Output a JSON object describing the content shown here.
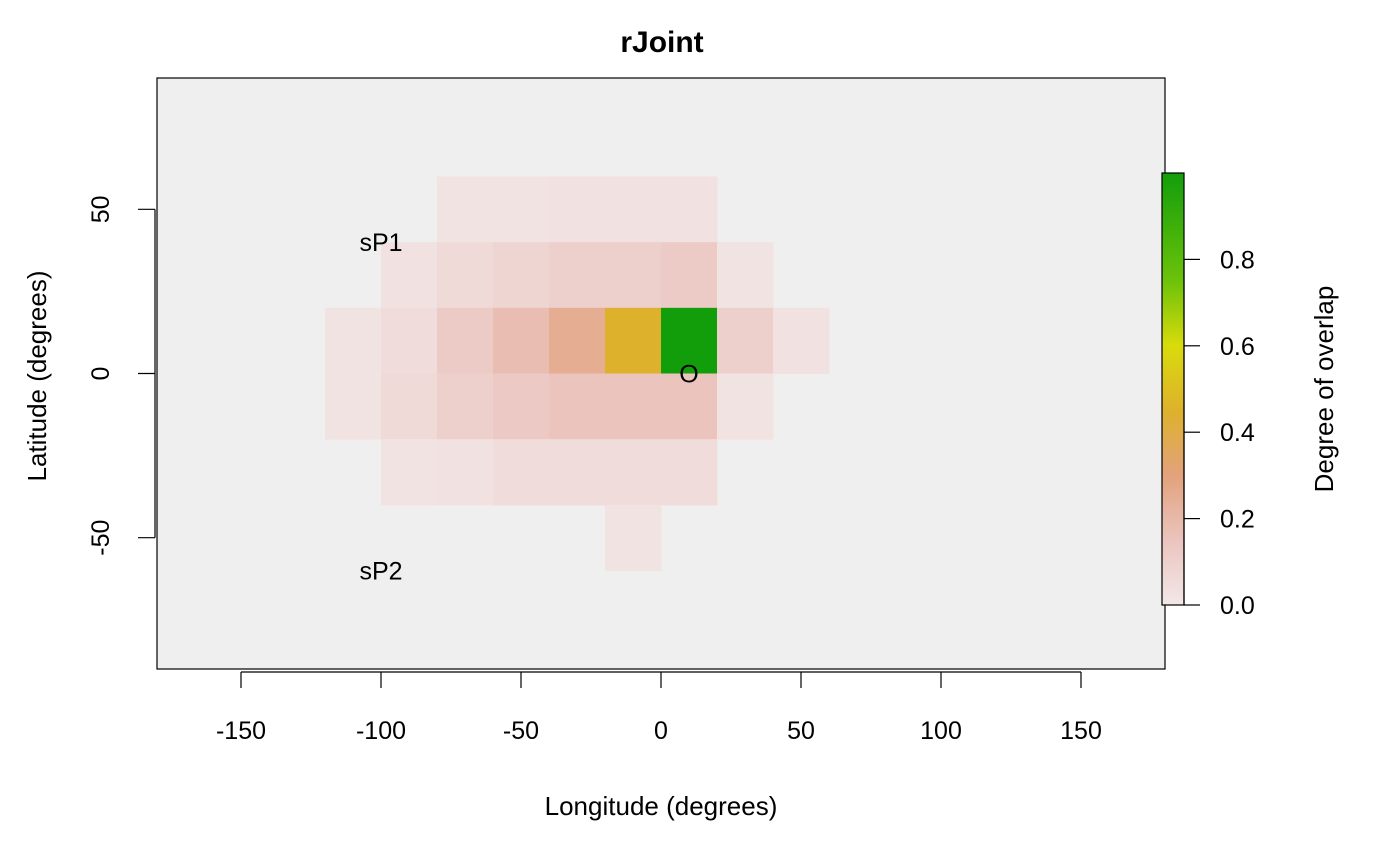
{
  "chart_data": {
    "type": "heatmap",
    "title": "rJoint",
    "xlabel": "Longitude (degrees)",
    "ylabel": "Latitude (degrees)",
    "xlim": [
      -180,
      180
    ],
    "ylim": [
      -90,
      90
    ],
    "x_ticks": [
      -150,
      -100,
      -50,
      0,
      50,
      100,
      150
    ],
    "y_ticks": [
      -50,
      0,
      50
    ],
    "x_tick_labels": [
      "-150",
      "-100",
      "-50",
      "0",
      "50",
      "100",
      "150"
    ],
    "y_tick_labels": [
      "-50",
      "0",
      "50"
    ],
    "grid": false,
    "background_color": "#EFEFEF",
    "cell_size_degrees": 20,
    "cell_height_degrees": 20,
    "cells": [
      {
        "x": -80,
        "y": 40,
        "value": 0.02
      },
      {
        "x": -60,
        "y": 40,
        "value": 0.02
      },
      {
        "x": -40,
        "y": 40,
        "value": 0.03
      },
      {
        "x": -20,
        "y": 40,
        "value": 0.03
      },
      {
        "x": 0,
        "y": 40,
        "value": 0.03
      },
      {
        "x": -100,
        "y": 20,
        "value": 0.03
      },
      {
        "x": -80,
        "y": 20,
        "value": 0.06
      },
      {
        "x": -60,
        "y": 20,
        "value": 0.08
      },
      {
        "x": -40,
        "y": 20,
        "value": 0.1
      },
      {
        "x": -20,
        "y": 20,
        "value": 0.1
      },
      {
        "x": 0,
        "y": 20,
        "value": 0.12
      },
      {
        "x": 20,
        "y": 20,
        "value": 0.02
      },
      {
        "x": -120,
        "y": 0,
        "value": 0.02
      },
      {
        "x": -100,
        "y": 0,
        "value": 0.05
      },
      {
        "x": -80,
        "y": 0,
        "value": 0.12
      },
      {
        "x": -60,
        "y": 0,
        "value": 0.18
      },
      {
        "x": -40,
        "y": 0,
        "value": 0.25
      },
      {
        "x": -20,
        "y": 0,
        "value": 0.45
      },
      {
        "x": 0,
        "y": 0,
        "value": 1.0
      },
      {
        "x": 20,
        "y": 0,
        "value": 0.1
      },
      {
        "x": 40,
        "y": 0,
        "value": 0.03
      },
      {
        "x": -120,
        "y": -20,
        "value": 0.02
      },
      {
        "x": -100,
        "y": -20,
        "value": 0.06
      },
      {
        "x": -80,
        "y": -20,
        "value": 0.1
      },
      {
        "x": -60,
        "y": -20,
        "value": 0.13
      },
      {
        "x": -40,
        "y": -20,
        "value": 0.15
      },
      {
        "x": -20,
        "y": -20,
        "value": 0.15
      },
      {
        "x": 0,
        "y": -20,
        "value": 0.15
      },
      {
        "x": 20,
        "y": -20,
        "value": 0.02
      },
      {
        "x": -100,
        "y": -40,
        "value": 0.02
      },
      {
        "x": -80,
        "y": -40,
        "value": 0.03
      },
      {
        "x": -60,
        "y": -40,
        "value": 0.05
      },
      {
        "x": -40,
        "y": -40,
        "value": 0.05
      },
      {
        "x": -20,
        "y": -40,
        "value": 0.05
      },
      {
        "x": 0,
        "y": -40,
        "value": 0.05
      },
      {
        "x": -20,
        "y": -60,
        "value": 0.02
      }
    ],
    "annotations": [
      {
        "text": "sP1",
        "x": -100,
        "y": 40
      },
      {
        "text": "sP2",
        "x": -100,
        "y": -60
      },
      {
        "text": "O",
        "x": 10,
        "y": 0
      }
    ],
    "colorbar": {
      "label": "Degree of overlap",
      "range": [
        0,
        1
      ],
      "ticks": [
        0.0,
        0.2,
        0.4,
        0.6,
        0.8
      ],
      "tick_labels": [
        "0.0",
        "0.2",
        "0.4",
        "0.6",
        "0.8"
      ],
      "placement": "right",
      "stops": [
        {
          "v": 0.0,
          "color": "#F2E8E8"
        },
        {
          "v": 0.15,
          "color": "#EBC4BE"
        },
        {
          "v": 0.3,
          "color": "#E2A27C"
        },
        {
          "v": 0.45,
          "color": "#DEB12C"
        },
        {
          "v": 0.6,
          "color": "#D9DB0C"
        },
        {
          "v": 0.75,
          "color": "#6CC20A"
        },
        {
          "v": 1.0,
          "color": "#129E0A"
        }
      ]
    }
  }
}
